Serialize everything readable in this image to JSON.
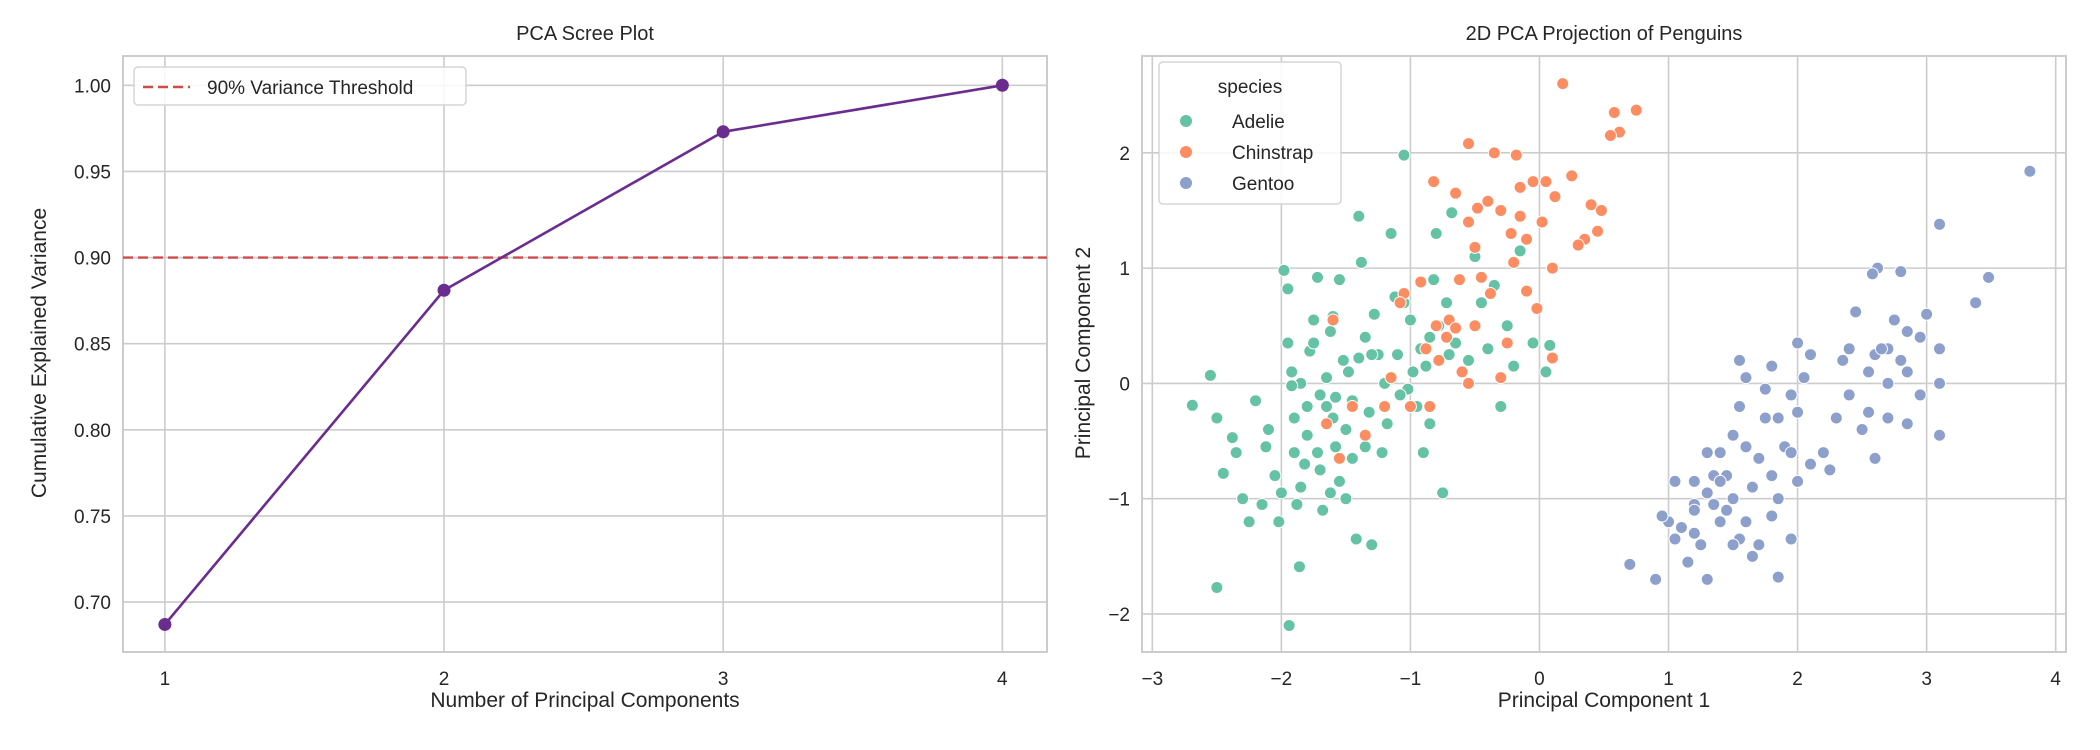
{
  "chart_data": [
    {
      "type": "line",
      "title": "PCA Scree Plot",
      "xlabel": "Number of Principal Components",
      "ylabel": "Cumulative Explained Variance",
      "x": [
        1,
        2,
        3,
        4
      ],
      "values": [
        0.687,
        0.881,
        0.973,
        1.0
      ],
      "xticks": [
        "1",
        "2",
        "3",
        "4"
      ],
      "yticks": [
        "0.70",
        "0.75",
        "0.80",
        "0.85",
        "0.90",
        "0.95",
        "1.00"
      ],
      "xlim": [
        0.85,
        4.16
      ],
      "ylim": [
        0.671,
        1.017
      ],
      "line_color": "#6a2c8e",
      "threshold": {
        "value": 0.9,
        "label": "90% Variance Threshold",
        "color": "#d14a4a",
        "style": "dashed"
      },
      "legend_placement": "top-left",
      "grid": true
    },
    {
      "type": "scatter",
      "title": "2D PCA Projection of Penguins",
      "xlabel": "Principal Component 1",
      "ylabel": "Principal Component 2",
      "xticks": [
        "−3",
        "−2",
        "−1",
        "0",
        "1",
        "2",
        "3",
        "4"
      ],
      "yticks": [
        "−2",
        "−1",
        "0",
        "1",
        "2"
      ],
      "xlim": [
        -3.08,
        4.08
      ],
      "ylim": [
        -2.33,
        2.84
      ],
      "legend_title": "species",
      "legend_placement": "top-left",
      "grid": true,
      "series": [
        {
          "name": "Adelie",
          "color": "#66c2a5",
          "points": [
            [
              -2.69,
              -0.19
            ],
            [
              -2.5,
              -1.77
            ],
            [
              -1.94,
              -2.1
            ],
            [
              -1.86,
              -1.59
            ],
            [
              -2.55,
              0.07
            ],
            [
              -2.45,
              -0.78
            ],
            [
              -2.38,
              -0.47
            ],
            [
              -2.3,
              -1.0
            ],
            [
              -2.35,
              -0.6
            ],
            [
              -2.5,
              -0.3
            ],
            [
              -2.25,
              -1.2
            ],
            [
              -2.2,
              -0.15
            ],
            [
              -2.1,
              -0.4
            ],
            [
              -2.05,
              -0.8
            ],
            [
              -2.02,
              -1.2
            ],
            [
              -2.0,
              -0.95
            ],
            [
              -1.98,
              0.98
            ],
            [
              -1.95,
              0.82
            ],
            [
              -1.95,
              0.35
            ],
            [
              -1.92,
              0.1
            ],
            [
              -1.9,
              -0.3
            ],
            [
              -1.9,
              -0.6
            ],
            [
              -1.88,
              -1.05
            ],
            [
              -1.85,
              -0.9
            ],
            [
              -1.85,
              0.0
            ],
            [
              -1.8,
              -0.2
            ],
            [
              -1.8,
              -0.45
            ],
            [
              -1.78,
              0.28
            ],
            [
              -1.75,
              0.55
            ],
            [
              -1.72,
              0.92
            ],
            [
              -1.7,
              -0.1
            ],
            [
              -1.7,
              -0.75
            ],
            [
              -1.68,
              -1.1
            ],
            [
              -1.65,
              0.05
            ],
            [
              -1.62,
              0.45
            ],
            [
              -1.6,
              0.58
            ],
            [
              -1.6,
              -0.3
            ],
            [
              -1.58,
              -0.55
            ],
            [
              -1.55,
              0.9
            ],
            [
              -1.55,
              -0.85
            ],
            [
              -1.52,
              0.2
            ],
            [
              -1.5,
              -0.4
            ],
            [
              -1.5,
              -1.0
            ],
            [
              -1.48,
              0.1
            ],
            [
              -1.45,
              -0.15
            ],
            [
              -1.45,
              -0.65
            ],
            [
              -1.42,
              -1.35
            ],
            [
              -1.4,
              1.45
            ],
            [
              -1.38,
              1.05
            ],
            [
              -1.35,
              0.4
            ],
            [
              -1.32,
              -0.25
            ],
            [
              -1.3,
              -1.4
            ],
            [
              -1.28,
              0.6
            ],
            [
              -1.25,
              0.25
            ],
            [
              -1.22,
              -0.6
            ],
            [
              -1.2,
              0.0
            ],
            [
              -1.18,
              -0.35
            ],
            [
              -1.15,
              1.3
            ],
            [
              -1.12,
              0.75
            ],
            [
              -1.1,
              0.25
            ],
            [
              -1.05,
              1.98
            ],
            [
              -1.05,
              0.7
            ],
            [
              -1.02,
              -0.05
            ],
            [
              -1.0,
              0.55
            ],
            [
              -0.98,
              0.1
            ],
            [
              -0.95,
              -0.2
            ],
            [
              -0.92,
              0.3
            ],
            [
              -0.9,
              -0.6
            ],
            [
              -0.88,
              0.15
            ],
            [
              -0.85,
              0.4
            ],
            [
              -0.82,
              0.9
            ],
            [
              -0.8,
              1.3
            ],
            [
              -0.78,
              0.5
            ],
            [
              -0.75,
              -0.95
            ],
            [
              -0.72,
              0.7
            ],
            [
              -0.7,
              0.25
            ],
            [
              -0.68,
              1.48
            ],
            [
              -0.65,
              0.35
            ],
            [
              -0.62,
              0.9
            ],
            [
              -0.6,
              0.1
            ],
            [
              -0.55,
              0.2
            ],
            [
              -0.5,
              1.1
            ],
            [
              -0.45,
              0.7
            ],
            [
              -0.4,
              0.3
            ],
            [
              -0.35,
              0.85
            ],
            [
              -0.3,
              -0.2
            ],
            [
              -0.25,
              0.5
            ],
            [
              -0.2,
              0.15
            ],
            [
              -0.15,
              1.15
            ],
            [
              -0.05,
              0.35
            ],
            [
              0.08,
              0.33
            ],
            [
              0.05,
              0.1
            ],
            [
              -1.72,
              -0.6
            ],
            [
              -1.82,
              -0.7
            ],
            [
              -2.12,
              -0.55
            ],
            [
              -1.92,
              -0.02
            ],
            [
              -1.65,
              -0.2
            ],
            [
              -1.4,
              0.22
            ],
            [
              -1.3,
              0.25
            ],
            [
              -1.58,
              -0.12
            ],
            [
              -1.08,
              -0.1
            ],
            [
              -0.85,
              -0.35
            ],
            [
              -1.75,
              0.35
            ],
            [
              -1.62,
              -0.95
            ],
            [
              -2.15,
              -1.05
            ],
            [
              -1.35,
              -0.55
            ]
          ]
        },
        {
          "name": "Chinstrap",
          "color": "#fc8d62",
          "points": [
            [
              0.18,
              2.6
            ],
            [
              0.58,
              2.35
            ],
            [
              0.62,
              2.18
            ],
            [
              0.75,
              2.37
            ],
            [
              0.55,
              2.15
            ],
            [
              -0.55,
              2.08
            ],
            [
              -0.35,
              2.0
            ],
            [
              -0.18,
              1.98
            ],
            [
              -0.05,
              1.75
            ],
            [
              0.05,
              1.75
            ],
            [
              0.12,
              1.62
            ],
            [
              0.25,
              1.8
            ],
            [
              -0.4,
              1.58
            ],
            [
              -0.15,
              1.7
            ],
            [
              -0.48,
              1.52
            ],
            [
              -0.3,
              1.5
            ],
            [
              0.4,
              1.55
            ],
            [
              0.48,
              1.5
            ],
            [
              0.35,
              1.25
            ],
            [
              0.45,
              1.32
            ],
            [
              -0.22,
              1.3
            ],
            [
              -0.1,
              1.25
            ],
            [
              0.02,
              1.4
            ],
            [
              -0.55,
              1.4
            ],
            [
              -0.82,
              1.75
            ],
            [
              -0.65,
              1.65
            ],
            [
              -0.5,
              1.18
            ],
            [
              -0.62,
              0.9
            ],
            [
              -0.45,
              0.92
            ],
            [
              -0.38,
              0.78
            ],
            [
              0.1,
              1.0
            ],
            [
              -0.2,
              1.05
            ],
            [
              -0.7,
              0.55
            ],
            [
              -0.8,
              0.5
            ],
            [
              -0.72,
              0.4
            ],
            [
              -0.78,
              0.2
            ],
            [
              -0.6,
              0.1
            ],
            [
              -0.88,
              0.3
            ],
            [
              -1.05,
              0.78
            ],
            [
              -1.08,
              0.7
            ],
            [
              -1.15,
              0.05
            ],
            [
              -1.2,
              -0.2
            ],
            [
              -1.45,
              -0.2
            ],
            [
              -1.6,
              0.55
            ],
            [
              -1.65,
              -0.35
            ],
            [
              -1.55,
              -0.65
            ],
            [
              -1.35,
              -0.45
            ],
            [
              -1.0,
              -0.2
            ],
            [
              -0.85,
              -0.2
            ],
            [
              -0.55,
              0.0
            ],
            [
              -0.5,
              0.5
            ],
            [
              -0.3,
              0.05
            ],
            [
              -0.02,
              0.65
            ],
            [
              0.1,
              0.22
            ],
            [
              -0.25,
              0.35
            ],
            [
              -0.1,
              0.8
            ],
            [
              -0.65,
              0.48
            ],
            [
              -0.92,
              0.88
            ],
            [
              -0.15,
              1.45
            ],
            [
              0.3,
              1.2
            ]
          ]
        },
        {
          "name": "Gentoo",
          "color": "#8da0cb",
          "points": [
            [
              3.8,
              1.84
            ],
            [
              3.1,
              1.38
            ],
            [
              3.48,
              0.92
            ],
            [
              3.38,
              0.7
            ],
            [
              2.8,
              0.97
            ],
            [
              2.62,
              1.0
            ],
            [
              2.58,
              0.95
            ],
            [
              3.0,
              0.6
            ],
            [
              2.85,
              0.45
            ],
            [
              2.95,
              0.4
            ],
            [
              3.1,
              0.3
            ],
            [
              3.1,
              0.0
            ],
            [
              2.45,
              0.62
            ],
            [
              2.75,
              0.55
            ],
            [
              2.7,
              0.3
            ],
            [
              2.6,
              0.25
            ],
            [
              2.55,
              0.1
            ],
            [
              2.85,
              0.1
            ],
            [
              2.95,
              -0.1
            ],
            [
              2.7,
              -0.3
            ],
            [
              2.85,
              -0.35
            ],
            [
              2.6,
              -0.65
            ],
            [
              2.5,
              -0.4
            ],
            [
              2.4,
              -0.1
            ],
            [
              2.3,
              -0.3
            ],
            [
              2.2,
              -0.6
            ],
            [
              2.1,
              0.25
            ],
            [
              2.0,
              0.35
            ],
            [
              2.05,
              0.05
            ],
            [
              1.95,
              -0.1
            ],
            [
              1.8,
              0.15
            ],
            [
              1.85,
              -0.3
            ],
            [
              1.75,
              -0.3
            ],
            [
              1.7,
              -0.65
            ],
            [
              1.9,
              -0.55
            ],
            [
              2.1,
              -0.7
            ],
            [
              2.0,
              -0.85
            ],
            [
              1.6,
              0.05
            ],
            [
              1.55,
              -0.2
            ],
            [
              1.5,
              -0.45
            ],
            [
              1.4,
              -0.6
            ],
            [
              1.45,
              -0.8
            ],
            [
              1.35,
              -0.8
            ],
            [
              1.3,
              -0.95
            ],
            [
              1.5,
              -1.0
            ],
            [
              1.65,
              -0.9
            ],
            [
              1.8,
              -0.8
            ],
            [
              1.85,
              -1.0
            ],
            [
              1.95,
              -1.35
            ],
            [
              1.8,
              -1.15
            ],
            [
              1.6,
              -1.2
            ],
            [
              1.55,
              -1.35
            ],
            [
              1.5,
              -1.4
            ],
            [
              1.4,
              -1.2
            ],
            [
              1.35,
              -1.05
            ],
            [
              1.25,
              -1.4
            ],
            [
              1.2,
              -1.3
            ],
            [
              1.1,
              -1.25
            ],
            [
              1.05,
              -1.35
            ],
            [
              1.0,
              -1.2
            ],
            [
              0.95,
              -1.15
            ],
            [
              1.05,
              -0.85
            ],
            [
              1.2,
              -0.85
            ],
            [
              1.15,
              -1.55
            ],
            [
              1.3,
              -1.7
            ],
            [
              0.9,
              -1.7
            ],
            [
              0.7,
              -1.57
            ],
            [
              1.85,
              -1.68
            ],
            [
              1.65,
              -1.5
            ],
            [
              1.3,
              -0.6
            ],
            [
              1.6,
              -0.55
            ],
            [
              1.75,
              -0.05
            ],
            [
              1.55,
              0.2
            ],
            [
              1.2,
              -1.05
            ],
            [
              2.25,
              -0.75
            ],
            [
              2.35,
              0.2
            ],
            [
              2.55,
              -0.25
            ],
            [
              2.65,
              0.3
            ],
            [
              3.1,
              -0.45
            ],
            [
              2.4,
              0.3
            ],
            [
              2.0,
              -0.25
            ],
            [
              1.95,
              -0.6
            ],
            [
              1.45,
              -1.1
            ],
            [
              1.7,
              -1.4
            ],
            [
              1.4,
              -0.85
            ],
            [
              2.8,
              0.2
            ],
            [
              2.7,
              0.0
            ],
            [
              1.2,
              -1.1
            ]
          ]
        }
      ]
    }
  ]
}
